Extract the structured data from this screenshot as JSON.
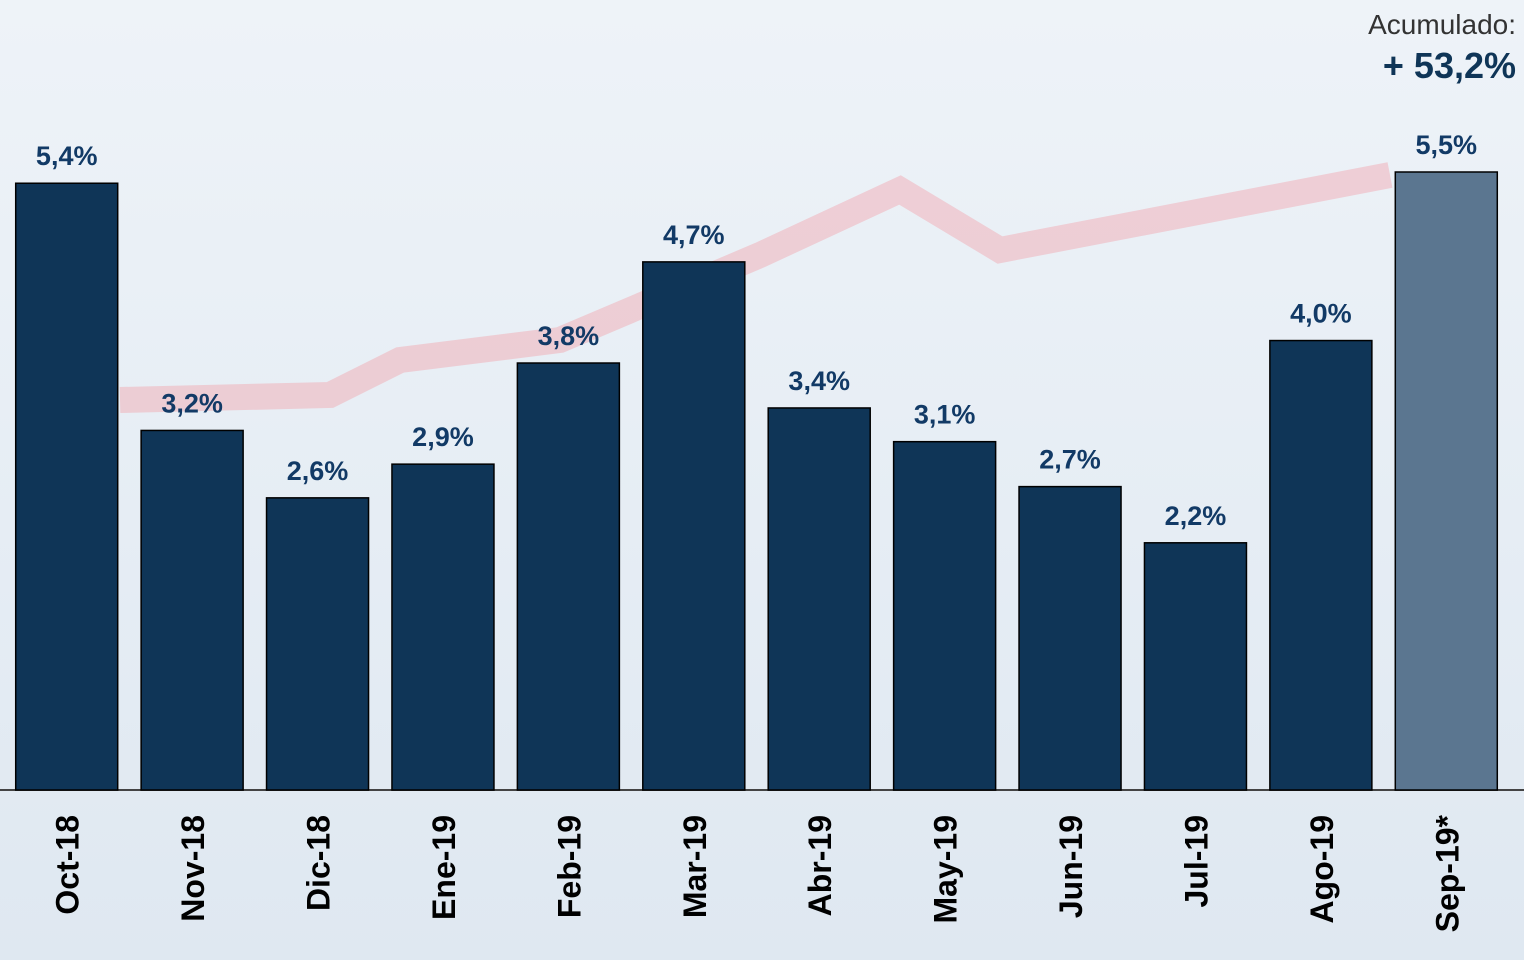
{
  "chart_data": {
    "type": "bar",
    "categories": [
      "Oct-18",
      "Nov-18",
      "Dic-18",
      "Ene-19",
      "Feb-19",
      "Mar-19",
      "Abr-19",
      "May-19",
      "Jun-19",
      "Jul-19",
      "Ago-19",
      "Sep-19*"
    ],
    "values": [
      5.4,
      3.2,
      2.6,
      2.9,
      3.8,
      4.7,
      3.4,
      3.1,
      2.7,
      2.2,
      4.0,
      5.5
    ],
    "value_labels": [
      "5,4%",
      "3,2%",
      "2,6%",
      "2,9%",
      "3,8%",
      "4,7%",
      "3,4%",
      "3,1%",
      "2,7%",
      "2,2%",
      "4,0%",
      "5,5%"
    ],
    "colors": [
      "#0f3557",
      "#0f3557",
      "#0f3557",
      "#0f3557",
      "#0f3557",
      "#0f3557",
      "#0f3557",
      "#0f3557",
      "#0f3557",
      "#0f3557",
      "#0f3557",
      "#5b7690"
    ],
    "ylim": [
      0,
      5.5
    ],
    "annotations": [
      "Acumulado:",
      "+ 53,2%"
    ]
  }
}
